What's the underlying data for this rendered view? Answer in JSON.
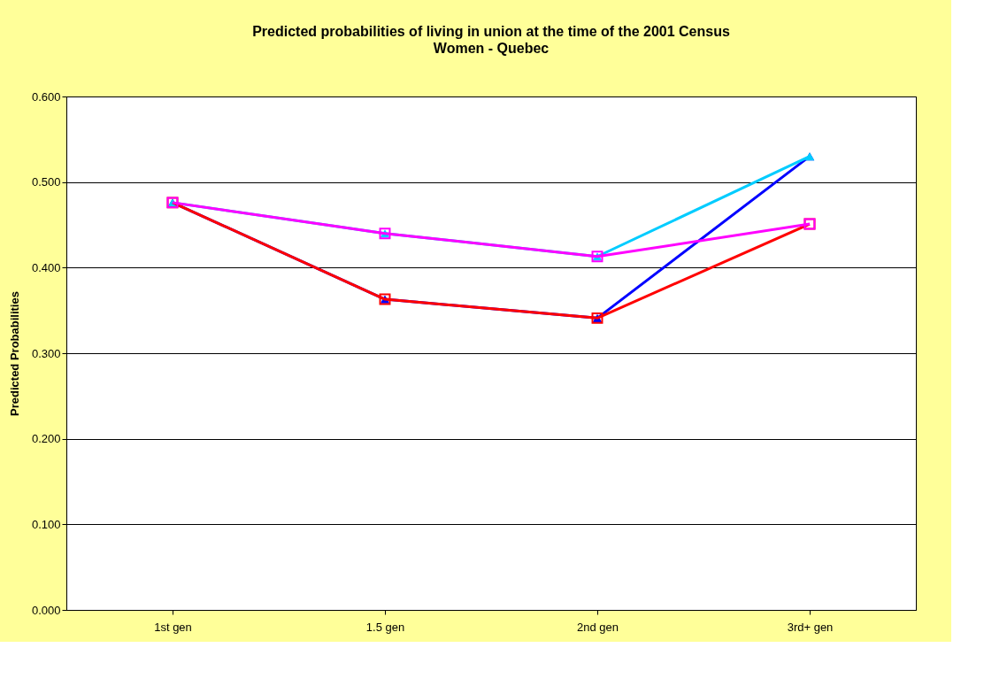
{
  "chart_data": {
    "type": "line",
    "title": "Predicted probabilities of living in union at the time of the 2001 Census",
    "subtitle": "Women - Quebec",
    "ylabel": "Predicted Probabilities",
    "categories": [
      "1st gen",
      "1.5 gen",
      "2nd gen",
      "3rd+ gen"
    ],
    "series": [
      {
        "color": "#0000ff",
        "marker": "triangle",
        "values": [
          0.476,
          0.363,
          0.341,
          0.53
        ]
      },
      {
        "color": "#00ccff",
        "marker": "triangle",
        "values": [
          0.476,
          0.44,
          0.413,
          0.53
        ]
      },
      {
        "color": "#ff0000",
        "marker": "square",
        "values": [
          0.476,
          0.363,
          0.341,
          0.451
        ]
      },
      {
        "color": "#ff00ff",
        "marker": "square",
        "values": [
          0.476,
          0.44,
          0.413,
          0.451
        ]
      }
    ],
    "ylim": [
      0,
      0.6
    ],
    "yticks": [
      {
        "value": 0,
        "label": "0.000"
      },
      {
        "value": 0.1,
        "label": "0.100"
      },
      {
        "value": 0.2,
        "label": "0.200"
      },
      {
        "value": 0.3,
        "label": "0.300"
      },
      {
        "value": 0.4,
        "label": "0.400"
      },
      {
        "value": 0.5,
        "label": "0.500"
      },
      {
        "value": 0.6,
        "label": "0.600"
      }
    ],
    "grid": "y",
    "line_style": "solid"
  }
}
